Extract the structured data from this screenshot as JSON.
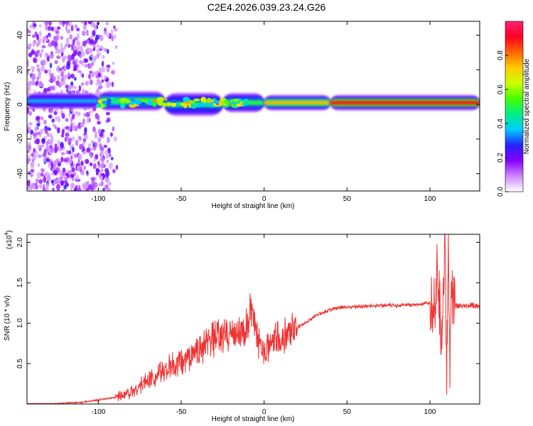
{
  "figure": {
    "title": "C2E4.2026.039.23.24.G26"
  },
  "chart_data": [
    {
      "type": "heatmap",
      "xlabel": "Height of straight line (km)",
      "ylabel": "Frequency (Hz)",
      "xlim": [
        -143,
        130
      ],
      "ylim": [
        -50,
        48
      ],
      "xticks": [
        -100,
        -50,
        0,
        50,
        100
      ],
      "yticks": [
        -40,
        -20,
        0,
        20,
        40
      ],
      "colorbar": {
        "label": "Normalized spectral amplitude",
        "range": [
          0,
          1
        ],
        "ticks": [
          "0.0",
          "0.2",
          "0.4",
          "0.6",
          "0.8"
        ],
        "tick_values": [
          0.0,
          0.2,
          0.4,
          0.6,
          0.8
        ],
        "stops": [
          "#ffffff",
          "#cc88ff",
          "#8800ff",
          "#2222ff",
          "#00ccff",
          "#00ee88",
          "#44ff00",
          "#ccff00",
          "#ffcc00",
          "#ff6600",
          "#ff0022",
          "#ff2277"
        ]
      },
      "ridge_segments": [
        {
          "x0": -143,
          "x1": -100,
          "center_hz": 2,
          "amplitude": 0.35,
          "width_hz": 4
        },
        {
          "x0": -100,
          "x1": -60,
          "center_hz": 2,
          "amplitude": 0.55,
          "width_hz": 5
        },
        {
          "x0": -60,
          "x1": -25,
          "center_hz": 0,
          "amplitude": 0.45,
          "width_hz": 6
        },
        {
          "x0": -25,
          "x1": 0,
          "center_hz": 1,
          "amplitude": 0.5,
          "width_hz": 5
        },
        {
          "x0": 0,
          "x1": 40,
          "center_hz": 1,
          "amplitude": 0.75,
          "width_hz": 4
        },
        {
          "x0": 40,
          "x1": 130,
          "center_hz": 1,
          "amplitude": 0.9,
          "width_hz": 4
        }
      ],
      "noise_region": {
        "x0": -143,
        "x1": -88,
        "freq_range": [
          -50,
          48
        ]
      }
    },
    {
      "type": "line",
      "xlabel": "Height of straight line (km)",
      "ylabel": "SNR (10 * v/v)",
      "scale_label": "(x10",
      "scale_exp": "4",
      "xlim": [
        -143,
        130
      ],
      "ylim": [
        0,
        2.1
      ],
      "xticks": [
        -100,
        -50,
        0,
        50,
        100
      ],
      "yticks": [
        0.5,
        1.0,
        1.5,
        2.0
      ],
      "ytick_labels": [
        "0.5",
        "1.0",
        "1.5",
        "2.0"
      ],
      "color": "#ee3333",
      "x": [
        -143,
        -130,
        -110,
        -100,
        -90,
        -85,
        -80,
        -75,
        -70,
        -65,
        -60,
        -55,
        -50,
        -45,
        -40,
        -35,
        -30,
        -25,
        -20,
        -15,
        -10,
        -8,
        -5,
        0,
        5,
        10,
        15,
        20,
        25,
        30,
        35,
        40,
        45,
        50,
        60,
        70,
        80,
        90,
        95,
        100,
        103,
        105,
        107,
        109,
        110,
        111,
        112,
        113,
        115,
        120,
        125,
        130
      ],
      "y": [
        0.0,
        0.0,
        0.02,
        0.05,
        0.08,
        0.12,
        0.15,
        0.22,
        0.3,
        0.35,
        0.42,
        0.48,
        0.5,
        0.6,
        0.66,
        0.72,
        0.8,
        0.83,
        0.9,
        0.88,
        0.95,
        1.2,
        0.85,
        0.7,
        0.75,
        0.8,
        0.88,
        0.95,
        1.0,
        1.08,
        1.13,
        1.17,
        1.19,
        1.2,
        1.21,
        1.22,
        1.22,
        1.23,
        1.23,
        1.25,
        1.35,
        1.6,
        0.8,
        2.05,
        0.3,
        2.0,
        0.5,
        1.6,
        1.22,
        1.2,
        1.22,
        1.2
      ]
    }
  ]
}
